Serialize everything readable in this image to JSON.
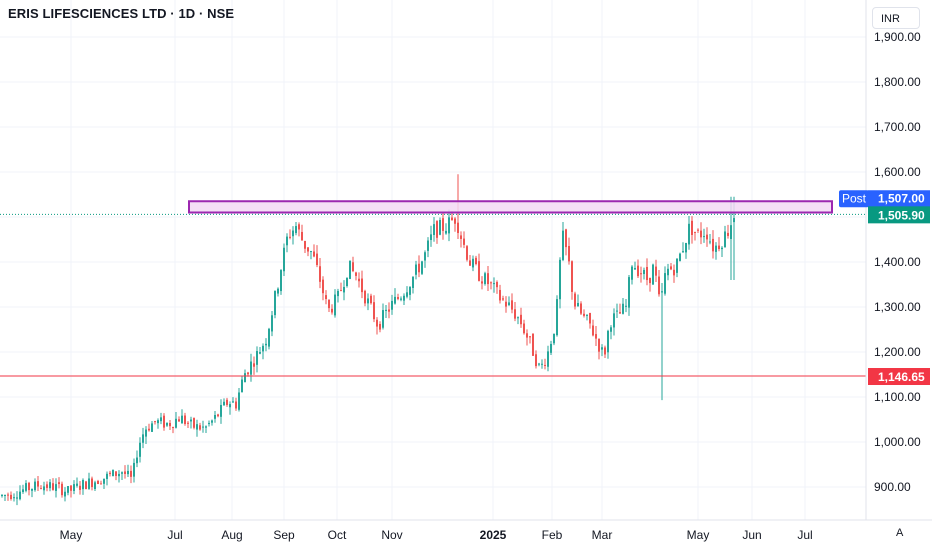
{
  "header": {
    "symbol_title": "ERIS LIFESCIENCES LTD · 1D · NSE",
    "currency": "INR",
    "auto_scale": "A"
  },
  "colors": {
    "up": "#26a69a",
    "down": "#ef5350",
    "zone_fill": "#f3d8f5",
    "zone_border": "#9c27b0",
    "support_line": "#f23645",
    "post_label": "#2962ff",
    "last_label": "#089981",
    "grid": "#f0f3fa"
  },
  "chart_data": {
    "type": "candlestick",
    "ylim": [
      870,
      1960
    ],
    "yticks": [
      900,
      1000,
      1100,
      1200,
      1300,
      1400,
      1500,
      1600,
      1700,
      1800,
      1900
    ],
    "ytick_labels": [
      "900.00",
      "1,000.00",
      "1,100.00",
      "1,200.00",
      "1,300.00",
      "1,400.00",
      "1,500.00",
      "1,600.00",
      "1,700.00",
      "1,800.00",
      "1,900.00"
    ],
    "x_labels": [
      "May",
      "Jul",
      "Aug",
      "Sep",
      "Oct",
      "Nov",
      "2025",
      "Feb",
      "Mar",
      "May",
      "Jun",
      "Jul"
    ],
    "price_path": [
      [
        0,
        880
      ],
      [
        12,
        885
      ],
      [
        25,
        895
      ],
      [
        40,
        905
      ],
      [
        55,
        900
      ],
      [
        68,
        890
      ],
      [
        82,
        905
      ],
      [
        96,
        915
      ],
      [
        110,
        925
      ],
      [
        122,
        935
      ],
      [
        132,
        915
      ],
      [
        138,
        990
      ],
      [
        145,
        1030
      ],
      [
        155,
        1045
      ],
      [
        168,
        1040
      ],
      [
        180,
        1055
      ],
      [
        192,
        1035
      ],
      [
        205,
        1030
      ],
      [
        216,
        1055
      ],
      [
        228,
        1090
      ],
      [
        236,
        1085
      ],
      [
        244,
        1150
      ],
      [
        256,
        1190
      ],
      [
        266,
        1230
      ],
      [
        276,
        1330
      ],
      [
        282,
        1400
      ],
      [
        288,
        1460
      ],
      [
        296,
        1480
      ],
      [
        304,
        1440
      ],
      [
        312,
        1420
      ],
      [
        320,
        1360
      ],
      [
        328,
        1290
      ],
      [
        338,
        1320
      ],
      [
        348,
        1390
      ],
      [
        356,
        1370
      ],
      [
        366,
        1320
      ],
      [
        378,
        1260
      ],
      [
        390,
        1300
      ],
      [
        402,
        1330
      ],
      [
        414,
        1370
      ],
      [
        424,
        1410
      ],
      [
        434,
        1470
      ],
      [
        446,
        1480
      ],
      [
        456,
        1500
      ],
      [
        462,
        1450
      ],
      [
        470,
        1400
      ],
      [
        480,
        1370
      ],
      [
        490,
        1350
      ],
      [
        500,
        1320
      ],
      [
        510,
        1300
      ],
      [
        520,
        1270
      ],
      [
        530,
        1220
      ],
      [
        540,
        1160
      ],
      [
        548,
        1200
      ],
      [
        556,
        1270
      ],
      [
        562,
        1460
      ],
      [
        568,
        1410
      ],
      [
        574,
        1310
      ],
      [
        582,
        1280
      ],
      [
        590,
        1260
      ],
      [
        598,
        1220
      ],
      [
        604,
        1190
      ],
      [
        610,
        1270
      ],
      [
        618,
        1280
      ],
      [
        626,
        1300
      ],
      [
        632,
        1400
      ],
      [
        640,
        1380
      ],
      [
        648,
        1360
      ],
      [
        654,
        1390
      ],
      [
        660,
        1300
      ],
      [
        666,
        1380
      ],
      [
        676,
        1390
      ],
      [
        684,
        1440
      ],
      [
        690,
        1480
      ],
      [
        698,
        1460
      ],
      [
        706,
        1470
      ],
      [
        714,
        1430
      ],
      [
        722,
        1450
      ],
      [
        728,
        1470
      ],
      [
        734,
        1505.9
      ]
    ],
    "resistance_zone": {
      "low": 1510,
      "high": 1535,
      "x_start_label": "Jul",
      "label": "Post",
      "value_label": "1,507.00"
    },
    "last_price": {
      "value": 1505.9,
      "label": "1,505.90"
    },
    "support_line": {
      "value": 1146.65,
      "label": "1,146.65"
    },
    "wick_extremes": [
      {
        "x": 459,
        "high": 1595
      },
      {
        "x": 661,
        "low": 1093
      }
    ]
  }
}
